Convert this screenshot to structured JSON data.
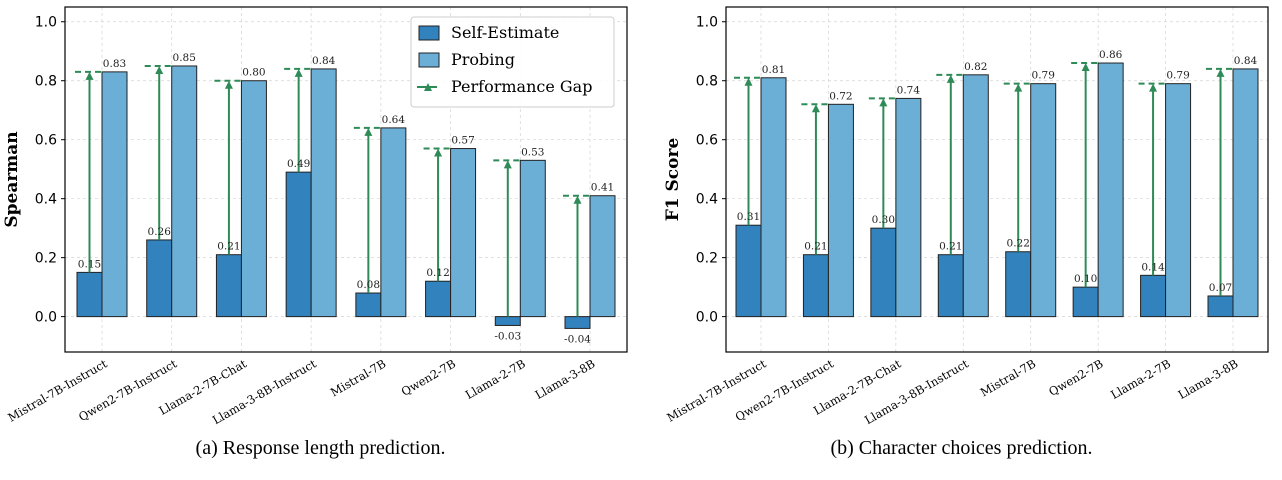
{
  "colors": {
    "self_estimate": "#3182bd",
    "probing": "#6baed6",
    "gap": "#2e8b57",
    "grid": "#d3d3d3"
  },
  "chart_data": [
    {
      "type": "bar",
      "categories": [
        "Mistral-7B-Instruct",
        "Qwen2-7B-Instruct",
        "Llama-2-7B-Chat",
        "Llama-3-8B-Instruct",
        "Mistral-7B",
        "Qwen2-7B",
        "Llama-2-7B",
        "Llama-3-8B"
      ],
      "series": [
        {
          "name": "Self-Estimate",
          "values": [
            0.15,
            0.26,
            0.21,
            0.49,
            0.08,
            0.12,
            -0.03,
            -0.04
          ],
          "labels": [
            "0.15",
            "0.26",
            "0.21",
            "0.49",
            "0.08",
            "0.12",
            "-0.03",
            "-0.04"
          ]
        },
        {
          "name": "Probing",
          "values": [
            0.83,
            0.85,
            0.8,
            0.84,
            0.64,
            0.57,
            0.53,
            0.41
          ],
          "labels": [
            "0.83",
            "0.85",
            "0.80",
            "0.84",
            "0.64",
            "0.57",
            "0.53",
            "0.41"
          ]
        }
      ],
      "gap_legend": "Performance Gap",
      "ylabel": "Spearman",
      "ylim": [
        -0.12,
        1.05
      ],
      "yticks": [
        0.0,
        0.2,
        0.4,
        0.6,
        0.8,
        1.0
      ],
      "ytick_labels": [
        "0.0",
        "0.2",
        "0.4",
        "0.6",
        "0.8",
        "1.0"
      ],
      "grid": true,
      "legend": "top-right",
      "caption": "(a) Response length prediction."
    },
    {
      "type": "bar",
      "categories": [
        "Mistral-7B-Instruct",
        "Qwen2-7B-Instruct",
        "Llama-2-7B-Chat",
        "Llama-3-8B-Instruct",
        "Mistral-7B",
        "Qwen2-7B",
        "Llama-2-7B",
        "Llama-3-8B"
      ],
      "series": [
        {
          "name": "Self-Estimate",
          "values": [
            0.31,
            0.21,
            0.3,
            0.21,
            0.22,
            0.1,
            0.14,
            0.07
          ],
          "labels": [
            "0.31",
            "0.21",
            "0.30",
            "0.21",
            "0.22",
            "0.10",
            "0.14",
            "0.07"
          ]
        },
        {
          "name": "Probing",
          "values": [
            0.81,
            0.72,
            0.74,
            0.82,
            0.79,
            0.86,
            0.79,
            0.84
          ],
          "labels": [
            "0.81",
            "0.72",
            "0.74",
            "0.82",
            "0.79",
            "0.86",
            "0.79",
            "0.84"
          ]
        }
      ],
      "gap_legend": "",
      "ylabel": "F1 Score",
      "ylim": [
        -0.12,
        1.05
      ],
      "yticks": [
        0.0,
        0.2,
        0.4,
        0.6,
        0.8,
        1.0
      ],
      "ytick_labels": [
        "0.0",
        "0.2",
        "0.4",
        "0.6",
        "0.8",
        "1.0"
      ],
      "grid": true,
      "legend": "",
      "caption": "(b) Character choices prediction."
    }
  ]
}
